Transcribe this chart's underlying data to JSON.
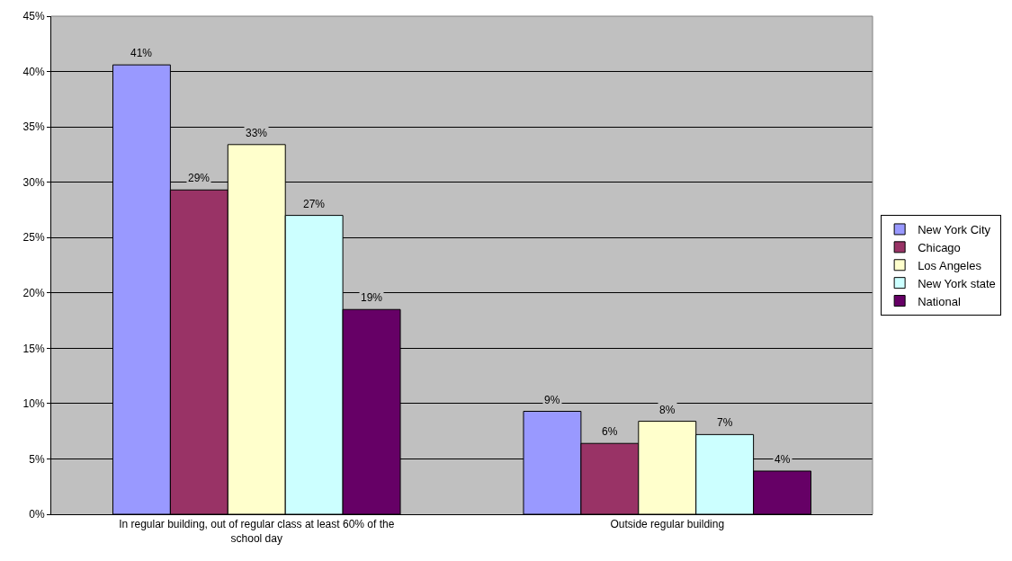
{
  "chart_data": {
    "type": "bar",
    "categories": [
      "In regular building, out of regular class at least 60% of the school day",
      "Outside regular building"
    ],
    "series": [
      {
        "name": "New York City",
        "color": "#9999ff",
        "values": [
          40.6,
          9.3
        ],
        "value_labels": [
          "41%",
          "9%"
        ]
      },
      {
        "name": "Chicago",
        "color": "#993366",
        "values": [
          29.3,
          6.4
        ],
        "value_labels": [
          "29%",
          "6%"
        ]
      },
      {
        "name": "Los Angeles",
        "color": "#ffffcc",
        "values": [
          33.4,
          8.4
        ],
        "value_labels": [
          "33%",
          "8%"
        ]
      },
      {
        "name": "New York state",
        "color": "#ccffff",
        "values": [
          27.0,
          7.2
        ],
        "value_labels": [
          "27%",
          "7%"
        ]
      },
      {
        "name": "National",
        "color": "#660066",
        "values": [
          18.5,
          3.9
        ],
        "value_labels": [
          "19%",
          "4%"
        ]
      }
    ],
    "ylim": [
      0,
      45
    ],
    "yticks": [
      {
        "value": 0,
        "label": "0%"
      },
      {
        "value": 5,
        "label": "5%"
      },
      {
        "value": 10,
        "label": "10%"
      },
      {
        "value": 15,
        "label": "15%"
      },
      {
        "value": 20,
        "label": "20%"
      },
      {
        "value": 25,
        "label": "25%"
      },
      {
        "value": 30,
        "label": "30%"
      },
      {
        "value": 35,
        "label": "35%"
      },
      {
        "value": 40,
        "label": "40%"
      },
      {
        "value": 45,
        "label": "45%"
      }
    ],
    "grid": "y",
    "legend": "right"
  }
}
